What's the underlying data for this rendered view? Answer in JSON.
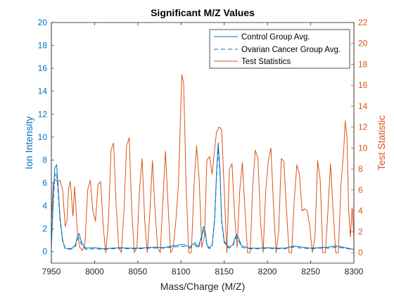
{
  "chart_data": {
    "type": "line",
    "title": "Significant M/Z Values",
    "xlabel": "Mass/Charge (M/Z)",
    "ylabel_left": "Ion Intensity",
    "ylabel_right": "Test Statistic",
    "xlim": [
      7950,
      8300
    ],
    "ylim_left": [
      -1,
      20
    ],
    "ylim_right": [
      -1,
      22
    ],
    "xticks": [
      "7950",
      "8000",
      "8050",
      "8100",
      "8150",
      "8200",
      "8250",
      "8300"
    ],
    "yticks_left": [
      "0",
      "2",
      "4",
      "6",
      "8",
      "10",
      "12",
      "14",
      "16",
      "18",
      "20"
    ],
    "yticks_right": [
      "0",
      "2",
      "4",
      "6",
      "8",
      "10",
      "12",
      "14",
      "16",
      "18",
      "20",
      "22"
    ],
    "legend_position": "top-right",
    "colors": {
      "left_axis": "#0072BD",
      "right_axis": "#D95319",
      "control": "#0072BD",
      "cancer": "#0072BD",
      "test": "#D95319"
    },
    "series": [
      {
        "name": "Control Group Avg.",
        "axis": "left",
        "style": "solid",
        "x": [
          7950,
          7952,
          7954,
          7956,
          7958,
          7960,
          7963,
          7966,
          7970,
          7974,
          7978,
          7980,
          7982,
          7985,
          7990,
          8000,
          8010,
          8020,
          8030,
          8040,
          8050,
          8060,
          8070,
          8080,
          8090,
          8100,
          8104,
          8110,
          8116,
          8120,
          8124,
          8126,
          8128,
          8130,
          8133,
          8136,
          8139,
          8141,
          8143,
          8145,
          8147,
          8150,
          8155,
          8160,
          8164,
          8166,
          8170,
          8175,
          8180,
          8190,
          8200,
          8210,
          8220,
          8230,
          8240,
          8250,
          8260,
          8270,
          8280,
          8290,
          8300
        ],
        "y": [
          0.5,
          4.5,
          7.3,
          7.6,
          5.5,
          3.0,
          1.0,
          0.3,
          0.25,
          0.3,
          0.6,
          1.3,
          1.6,
          0.8,
          0.3,
          0.35,
          0.25,
          0.3,
          0.35,
          0.3,
          0.3,
          0.35,
          0.4,
          0.35,
          0.5,
          0.6,
          0.6,
          0.4,
          0.8,
          0.4,
          1.4,
          2.2,
          1.8,
          0.6,
          0.3,
          0.6,
          3.0,
          6.8,
          9.5,
          7.2,
          2.8,
          0.9,
          0.4,
          0.6,
          1.5,
          1.3,
          0.5,
          0.4,
          0.3,
          0.3,
          0.35,
          0.3,
          0.3,
          0.5,
          0.4,
          0.3,
          0.35,
          0.4,
          0.5,
          0.35,
          0.2
        ]
      },
      {
        "name": "Ovarian Cancer Group Avg.",
        "axis": "left",
        "style": "dashed",
        "x": [
          7950,
          7952,
          7954,
          7956,
          7958,
          7960,
          7963,
          7966,
          7970,
          7974,
          7978,
          7980,
          7982,
          7985,
          7990,
          8000,
          8010,
          8020,
          8030,
          8040,
          8050,
          8060,
          8070,
          8080,
          8090,
          8100,
          8104,
          8110,
          8116,
          8120,
          8124,
          8126,
          8128,
          8130,
          8133,
          8136,
          8139,
          8141,
          8143,
          8145,
          8147,
          8150,
          8155,
          8160,
          8164,
          8166,
          8170,
          8175,
          8180,
          8190,
          8200,
          8210,
          8220,
          8230,
          8240,
          8250,
          8260,
          8270,
          8280,
          8290,
          8300
        ],
        "y": [
          0.4,
          4.0,
          6.6,
          6.9,
          5.0,
          2.7,
          0.9,
          0.25,
          0.2,
          0.25,
          0.5,
          1.0,
          1.2,
          0.6,
          0.2,
          0.25,
          0.2,
          0.25,
          0.3,
          0.25,
          0.25,
          0.3,
          0.3,
          0.3,
          0.4,
          0.45,
          0.45,
          0.3,
          0.6,
          0.3,
          1.2,
          1.9,
          1.6,
          0.5,
          0.25,
          0.5,
          2.8,
          6.4,
          9.0,
          6.9,
          2.6,
          0.8,
          0.3,
          0.5,
          1.3,
          1.1,
          0.4,
          0.3,
          0.25,
          0.25,
          0.3,
          0.25,
          0.25,
          0.4,
          0.3,
          0.25,
          0.3,
          0.3,
          0.4,
          0.3,
          0.15
        ]
      },
      {
        "name": "Test Statistics",
        "axis": "right",
        "style": "solid",
        "x": [
          7950,
          7952,
          7954,
          7957,
          7960,
          7963,
          7966,
          7968,
          7970,
          7972,
          7975,
          7977,
          7980,
          7983,
          7986,
          7989,
          7992,
          7995,
          7998,
          8001,
          8004,
          8007,
          8010,
          8013,
          8016,
          8019,
          8022,
          8025,
          8028,
          8031,
          8034,
          8037,
          8040,
          8043,
          8046,
          8049,
          8052,
          8055,
          8058,
          8061,
          8064,
          8067,
          8070,
          8073,
          8076,
          8079,
          8082,
          8085,
          8088,
          8091,
          8094,
          8097,
          8099,
          8101,
          8103,
          8106,
          8109,
          8112,
          8115,
          8118,
          8121,
          8124,
          8127,
          8130,
          8133,
          8136,
          8139,
          8141,
          8144,
          8147,
          8150,
          8153,
          8156,
          8159,
          8162,
          8165,
          8168,
          8171,
          8174,
          8177,
          8180,
          8183,
          8186,
          8189,
          8192,
          8195,
          8198,
          8201,
          8204,
          8207,
          8210,
          8213,
          8216,
          8219,
          8222,
          8225,
          8228,
          8231,
          8234,
          8237,
          8240,
          8243,
          8246,
          8249,
          8252,
          8255,
          8258,
          8261,
          8264,
          8267,
          8270,
          8273,
          8276,
          8279,
          8282,
          8285,
          8288,
          8290,
          8292,
          8294,
          8296,
          8298,
          8300
        ],
        "y": [
          3.0,
          6.5,
          7.0,
          6.8,
          6.9,
          6.0,
          2.5,
          3.0,
          6.2,
          6.8,
          3.5,
          6.3,
          2.0,
          0.5,
          0.2,
          1.0,
          6.0,
          6.9,
          4.0,
          3.0,
          6.5,
          6.8,
          2.5,
          0.0,
          3.0,
          9.8,
          10.5,
          4.5,
          0.5,
          0.0,
          4.0,
          10.2,
          11.0,
          4.0,
          0.0,
          0.5,
          6.0,
          9.0,
          3.0,
          0.0,
          4.0,
          8.8,
          4.0,
          0.5,
          0.0,
          5.0,
          9.7,
          4.5,
          0.0,
          0.5,
          3.0,
          6.5,
          12.0,
          17.0,
          16.2,
          6.0,
          0.0,
          0.0,
          6.3,
          10.2,
          7.0,
          0.5,
          1.5,
          8.8,
          9.2,
          7.5,
          10.0,
          11.5,
          12.0,
          11.8,
          6.0,
          0.0,
          8.0,
          8.5,
          3.5,
          0.5,
          6.0,
          8.6,
          4.0,
          0.0,
          0.0,
          6.5,
          9.8,
          9.0,
          3.0,
          0.0,
          6.0,
          8.8,
          10.0,
          4.5,
          0.0,
          2.0,
          9.0,
          8.7,
          4.0,
          0.0,
          0.0,
          5.0,
          8.4,
          7.5,
          4.0,
          4.2,
          4.0,
          2.5,
          0.0,
          1.5,
          8.8,
          7.0,
          0.0,
          0.0,
          4.0,
          8.5,
          4.0,
          0.0,
          0.0,
          6.5,
          9.5,
          12.6,
          11.0,
          4.0,
          1.5,
          4.3,
          1.5
        ]
      }
    ]
  }
}
